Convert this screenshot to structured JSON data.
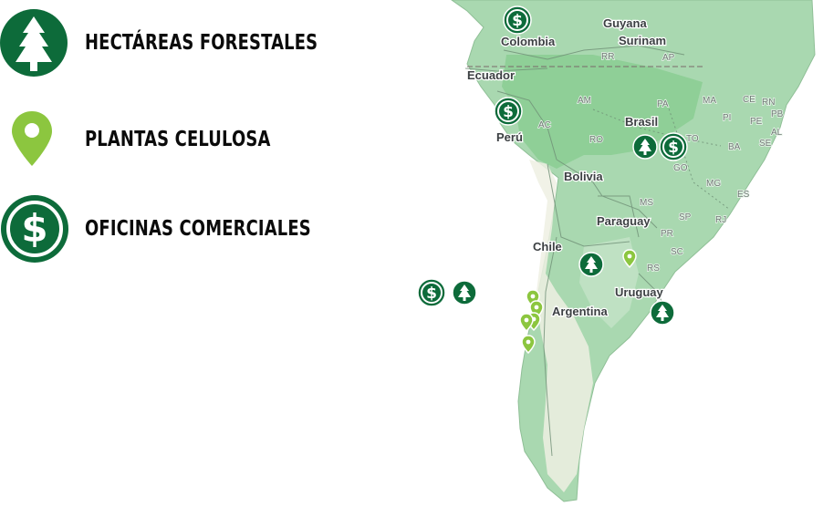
{
  "legend": {
    "forest_label": "HECTÁREAS FORESTALES",
    "plant_label": "PLANTAS CELULOSA",
    "office_label": "OFICINAS COMERCIALES"
  },
  "map": {
    "countries": {
      "guyana": "Guyana",
      "surinam": "Surinam",
      "colombia": "Colombia",
      "ecuador": "Ecuador",
      "peru": "Perú",
      "brasil": "Brasil",
      "bolivia": "Bolivia",
      "paraguay": "Paraguay",
      "chile": "Chile",
      "argentina": "Argentina",
      "uruguay": "Uruguay"
    },
    "states": [
      "RR",
      "AP",
      "AM",
      "PA",
      "MA",
      "CE",
      "RN",
      "PB",
      "PI",
      "PE",
      "AL",
      "SE",
      "AC",
      "RO",
      "TO",
      "BA",
      "GO",
      "MG",
      "ES",
      "MS",
      "SP",
      "RJ",
      "PR",
      "SC",
      "RS"
    ]
  },
  "colors": {
    "marker_dark_green": "#0d6b3a",
    "marker_light_green": "#8cc63f",
    "land": "#a9d8b0",
    "forest": "#8fcf97",
    "arid": "#eef0e3"
  },
  "icons": {
    "forest": "tree-icon",
    "plant": "map-pin-icon",
    "office": "dollar-icon"
  }
}
